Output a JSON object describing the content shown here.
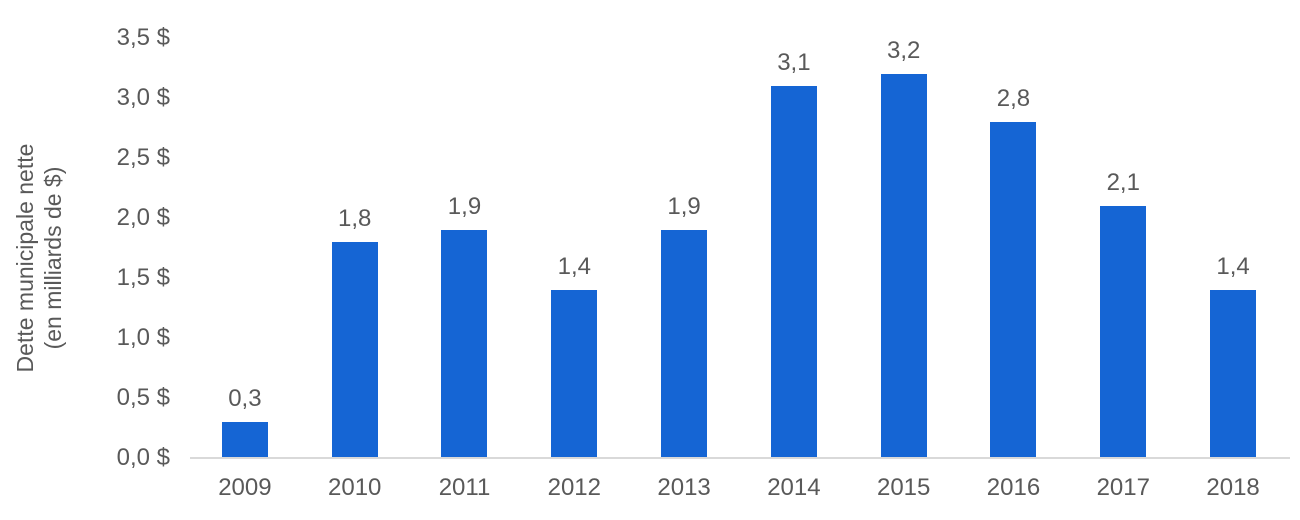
{
  "chart_data": {
    "type": "bar",
    "title": "",
    "xlabel": "",
    "ylabel_line1": "Dette municipale nette",
    "ylabel_line2": "(en milliards de $)",
    "categories": [
      "2009",
      "2010",
      "2011",
      "2012",
      "2013",
      "2014",
      "2015",
      "2016",
      "2017",
      "2018"
    ],
    "values": [
      0.3,
      1.8,
      1.9,
      1.4,
      1.9,
      3.1,
      3.2,
      2.8,
      2.1,
      1.4
    ],
    "value_labels": [
      "0,3",
      "1,8",
      "1,9",
      "1,4",
      "1,9",
      "3,1",
      "3,2",
      "2,8",
      "2,1",
      "1,4"
    ],
    "ylim": [
      0,
      3.5
    ],
    "yticks": [
      {
        "value": 0.0,
        "label": "0,0 $"
      },
      {
        "value": 0.5,
        "label": "0,5 $"
      },
      {
        "value": 1.0,
        "label": "1,0 $"
      },
      {
        "value": 1.5,
        "label": "1,5 $"
      },
      {
        "value": 2.0,
        "label": "2,0 $"
      },
      {
        "value": 2.5,
        "label": "2,5 $"
      },
      {
        "value": 3.0,
        "label": "3,0 $"
      },
      {
        "value": 3.5,
        "label": "3,5 $"
      }
    ],
    "grid": false,
    "legend_position": "none",
    "bar_color": "#1565D4",
    "text_color": "#595959",
    "axis_color": "#D9D9D9"
  }
}
